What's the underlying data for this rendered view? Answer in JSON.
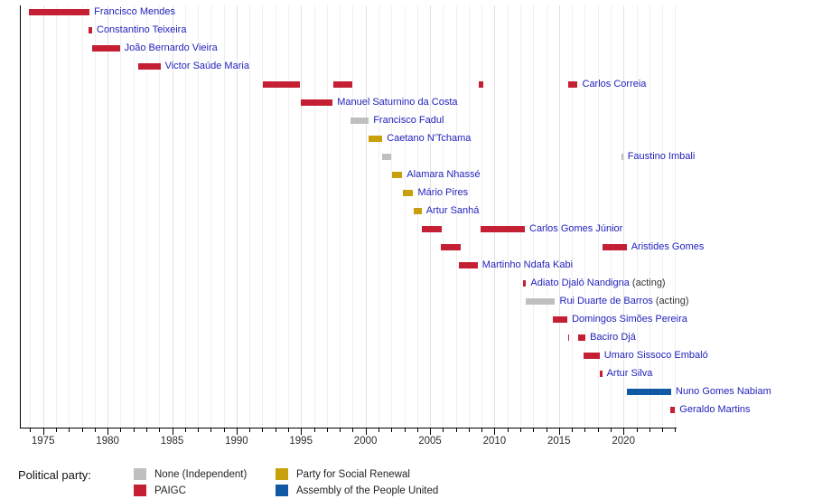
{
  "colors": {
    "paigc": "#c41f33",
    "none": "#bfbfbf",
    "prs": "#c8a00c",
    "apu": "#1259a5",
    "name_link_blue": "#2222bd",
    "acting_text": "#333333",
    "axis_text": "#2b2b2b"
  },
  "legend": {
    "title": "Political party:",
    "entries": [
      {
        "party": "none",
        "label": "None (Independent)"
      },
      {
        "party": "paigc",
        "label": "PAIGC"
      },
      {
        "party": "prs",
        "label": "Party for Social Renewal"
      },
      {
        "party": "apu",
        "label": "Assembly of the People United"
      }
    ]
  },
  "chart_data": {
    "type": "timeline",
    "description": "Gantt-style timeline of prime ministers' terms, colored by political party",
    "x_axis": {
      "start": 1973.2,
      "end": 2024.05,
      "tick_interval_years": 1,
      "labeled_years": [
        1975,
        1980,
        1985,
        1990,
        1995,
        2000,
        2005,
        2010,
        2015,
        2020
      ]
    },
    "legend_position": "bottom",
    "grid": true,
    "series": [
      {
        "name": "Francisco Mendes",
        "party": "paigc",
        "terms": [
          [
            1973.9,
            1978.6
          ]
        ]
      },
      {
        "name": "Constantino Teixeira",
        "party": "paigc",
        "terms": [
          [
            1978.5,
            1978.8
          ]
        ]
      },
      {
        "name": "João Bernardo Vieira",
        "party": "paigc",
        "terms": [
          [
            1978.8,
            1980.95
          ]
        ]
      },
      {
        "name": "Victor Saúde Maria",
        "party": "paigc",
        "terms": [
          [
            1982.4,
            1984.1
          ]
        ]
      },
      {
        "name": "Carlos Correia",
        "party": "paigc",
        "terms": [
          [
            1992.05,
            1994.95
          ],
          [
            1997.5,
            1998.95
          ],
          [
            2008.75,
            2009.1
          ],
          [
            2015.7,
            2016.45
          ]
        ]
      },
      {
        "name": "Manuel Saturnino da Costa",
        "party": "paigc",
        "terms": [
          [
            1994.95,
            1997.45
          ]
        ]
      },
      {
        "name": "Francisco Fadul",
        "party": "none",
        "terms": [
          [
            1998.85,
            2000.25
          ]
        ]
      },
      {
        "name": "Caetano N'Tchama",
        "party": "prs",
        "terms": [
          [
            2000.25,
            2001.3
          ]
        ]
      },
      {
        "name": "Faustino Imbali",
        "party": "none",
        "terms": [
          [
            2001.25,
            2001.95
          ],
          [
            2019.85,
            2019.97
          ]
        ]
      },
      {
        "name": "Alamara Nhassé",
        "party": "prs",
        "terms": [
          [
            2002.05,
            2002.85
          ]
        ]
      },
      {
        "name": "Mário Pires",
        "party": "prs",
        "terms": [
          [
            2002.9,
            2003.7
          ]
        ]
      },
      {
        "name": "Artur Sanhá",
        "party": "prs",
        "terms": [
          [
            2003.75,
            2004.35
          ]
        ]
      },
      {
        "name": "Carlos Gomes Júnior",
        "party": "paigc",
        "terms": [
          [
            2004.35,
            2005.95
          ],
          [
            2008.95,
            2012.35
          ]
        ]
      },
      {
        "name": "Aristides Gomes",
        "party": "paigc",
        "terms": [
          [
            2005.85,
            2007.4
          ],
          [
            2018.35,
            2020.25
          ]
        ]
      },
      {
        "name": "Martinho Ndafa Kabi",
        "party": "paigc",
        "terms": [
          [
            2007.25,
            2008.7
          ]
        ]
      },
      {
        "name": "Adiato Djaló Nandigna",
        "suffix": "(acting)",
        "party": "paigc",
        "terms": [
          [
            2012.2,
            2012.45
          ]
        ]
      },
      {
        "name": "Rui Duarte de Barros",
        "suffix": "(acting)",
        "party": "none",
        "terms": [
          [
            2012.45,
            2014.7
          ]
        ]
      },
      {
        "name": "Domingos Simões Pereira",
        "party": "paigc",
        "terms": [
          [
            2014.55,
            2015.65
          ]
        ]
      },
      {
        "name": "Baciro Djá",
        "party": "paigc",
        "terms": [
          [
            2015.7,
            2015.82
          ],
          [
            2016.45,
            2017.05
          ]
        ]
      },
      {
        "name": "Umaro Sissoco Embaló",
        "party": "paigc",
        "terms": [
          [
            2016.9,
            2018.15
          ]
        ]
      },
      {
        "name": "Artur Silva",
        "party": "paigc",
        "terms": [
          [
            2018.15,
            2018.35
          ]
        ]
      },
      {
        "name": "Nuno Gomes Nabiam",
        "party": "apu",
        "terms": [
          [
            2020.25,
            2023.7
          ]
        ]
      },
      {
        "name": "Geraldo Martins",
        "party": "paigc",
        "terms": [
          [
            2023.6,
            2024.0
          ]
        ]
      }
    ]
  }
}
